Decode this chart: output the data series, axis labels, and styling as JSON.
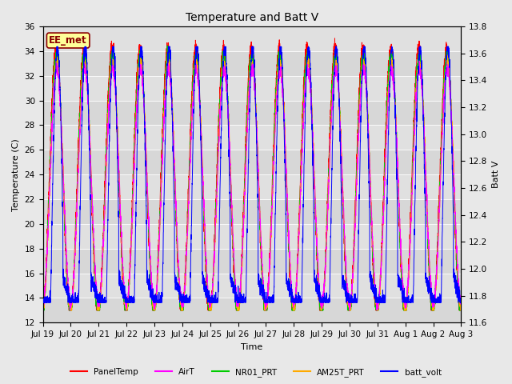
{
  "title": "Temperature and Batt V",
  "xlabel": "Time",
  "ylabel_left": "Temperature (C)",
  "ylabel_right": "Batt V",
  "ylim_left": [
    12,
    36
  ],
  "ylim_right": [
    11.6,
    13.8
  ],
  "yticks_left": [
    12,
    14,
    16,
    18,
    20,
    22,
    24,
    26,
    28,
    30,
    32,
    34,
    36
  ],
  "yticks_right": [
    11.6,
    11.8,
    12.0,
    12.2,
    12.4,
    12.6,
    12.8,
    13.0,
    13.2,
    13.4,
    13.6,
    13.8
  ],
  "xtick_labels": [
    "Jul 19",
    "Jul 20",
    "Jul 21",
    "Jul 22",
    "Jul 23",
    "Jul 24",
    "Jul 25",
    "Jul 26",
    "Jul 27",
    "Jul 28",
    "Jul 29",
    "Jul 30",
    "Jul 31",
    "Aug 1",
    "Aug 2",
    "Aug 3"
  ],
  "station_label": "EE_met",
  "legend_entries": [
    "PanelTemp",
    "AirT",
    "NR01_PRT",
    "AM25T_PRT",
    "batt_volt"
  ],
  "line_colors": [
    "#ff0000",
    "#ff00ff",
    "#00cc00",
    "#ffaa00",
    "#0000ff"
  ],
  "fig_bg_color": "#e8e8e8",
  "plot_bg_color": "#e0e0e0",
  "num_days": 15,
  "ppd": 288,
  "temp_min": 13.5,
  "temp_max": 35.2,
  "batt_min": 11.75,
  "batt_max": 13.65
}
